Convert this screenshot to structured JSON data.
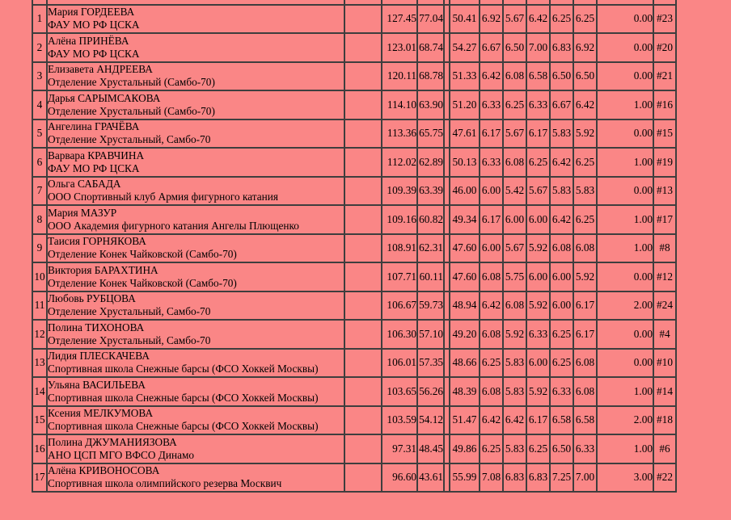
{
  "colors": {
    "page_background": "#fa8686",
    "grid_border": "#3e3e3e",
    "text": "#000000"
  },
  "table": {
    "partial_top_row_visible": true,
    "rows": [
      {
        "rank": "1",
        "name": "Мария ГОРДЕЕВА",
        "club": "ФАУ МО РФ ЦСКА",
        "total_score": "127.45",
        "score_a": "77.04",
        "score_b": "50.41",
        "components": [
          "6.92",
          "5.67",
          "6.42",
          "6.25",
          "6.25"
        ],
        "deduction": "0.00",
        "start_number": "#23"
      },
      {
        "rank": "2",
        "name": "Алёна ПРИНЁВА",
        "club": "ФАУ МО РФ ЦСКА",
        "total_score": "123.01",
        "score_a": "68.74",
        "score_b": "54.27",
        "components": [
          "6.67",
          "6.50",
          "7.00",
          "6.83",
          "6.92"
        ],
        "deduction": "0.00",
        "start_number": "#20"
      },
      {
        "rank": "3",
        "name": "Елизавета АНДРЕЕВА",
        "club": "Отделение Хрустальный (Самбо-70)",
        "total_score": "120.11",
        "score_a": "68.78",
        "score_b": "51.33",
        "components": [
          "6.42",
          "6.08",
          "6.58",
          "6.50",
          "6.50"
        ],
        "deduction": "0.00",
        "start_number": "#21"
      },
      {
        "rank": "4",
        "name": "Дарья САРЫМСАКОВА",
        "club": "Отделение Хрустальный (Самбо-70)",
        "total_score": "114.10",
        "score_a": "63.90",
        "score_b": "51.20",
        "components": [
          "6.33",
          "6.25",
          "6.33",
          "6.67",
          "6.42"
        ],
        "deduction": "1.00",
        "start_number": "#16"
      },
      {
        "rank": "5",
        "name": "Ангелина ГРАЧЁВА",
        "club": "Отделение Хрустальный, Самбо-70",
        "total_score": "113.36",
        "score_a": "65.75",
        "score_b": "47.61",
        "components": [
          "6.17",
          "5.67",
          "6.17",
          "5.83",
          "5.92"
        ],
        "deduction": "0.00",
        "start_number": "#15"
      },
      {
        "rank": "6",
        "name": "Варвара КРАВЧИНА",
        "club": "ФАУ МО РФ ЦСКА",
        "total_score": "112.02",
        "score_a": "62.89",
        "score_b": "50.13",
        "components": [
          "6.33",
          "6.08",
          "6.25",
          "6.42",
          "6.25"
        ],
        "deduction": "1.00",
        "start_number": "#19"
      },
      {
        "rank": "7",
        "name": "Ольга САБАДА",
        "club": "ООО Спортивный клуб Армия фигурного катания",
        "total_score": "109.39",
        "score_a": "63.39",
        "score_b": "46.00",
        "components": [
          "6.00",
          "5.42",
          "5.67",
          "5.83",
          "5.83"
        ],
        "deduction": "0.00",
        "start_number": "#13"
      },
      {
        "rank": "8",
        "name": "Мария МАЗУР",
        "club": "ООО Академия фигурного катания Ангелы Плющенко",
        "total_score": "109.16",
        "score_a": "60.82",
        "score_b": "49.34",
        "components": [
          "6.17",
          "6.00",
          "6.00",
          "6.42",
          "6.25"
        ],
        "deduction": "1.00",
        "start_number": "#17"
      },
      {
        "rank": "9",
        "name": "Таисия ГОРНЯКОВА",
        "club": "Отделение Конек Чайковской (Самбо-70)",
        "total_score": "108.91",
        "score_a": "62.31",
        "score_b": "47.60",
        "components": [
          "6.00",
          "5.67",
          "5.92",
          "6.08",
          "6.08"
        ],
        "deduction": "1.00",
        "start_number": "#8"
      },
      {
        "rank": "10",
        "name": "Виктория БАРАХТИНА",
        "club": "Отделение Конек Чайковской (Самбо-70)",
        "total_score": "107.71",
        "score_a": "60.11",
        "score_b": "47.60",
        "components": [
          "6.08",
          "5.75",
          "6.00",
          "6.00",
          "5.92"
        ],
        "deduction": "0.00",
        "start_number": "#12"
      },
      {
        "rank": "11",
        "name": "Любовь РУБЦОВА",
        "club": "Отделение Хрустальный, Самбо-70",
        "total_score": "106.67",
        "score_a": "59.73",
        "score_b": "48.94",
        "components": [
          "6.42",
          "6.08",
          "5.92",
          "6.00",
          "6.17"
        ],
        "deduction": "2.00",
        "start_number": "#24"
      },
      {
        "rank": "12",
        "name": "Полина ТИХОНОВА",
        "club": "Отделение Хрустальный, Самбо-70",
        "total_score": "106.30",
        "score_a": "57.10",
        "score_b": "49.20",
        "components": [
          "6.08",
          "5.92",
          "6.33",
          "6.25",
          "6.17"
        ],
        "deduction": "0.00",
        "start_number": "#4"
      },
      {
        "rank": "13",
        "name": "Лидия ПЛЕСКАЧЕВА",
        "club": "Спортивная школа Снежные барсы (ФСО Хоккей Москвы)",
        "total_score": "106.01",
        "score_a": "57.35",
        "score_b": "48.66",
        "components": [
          "6.25",
          "5.83",
          "6.00",
          "6.25",
          "6.08"
        ],
        "deduction": "0.00",
        "start_number": "#10"
      },
      {
        "rank": "14",
        "name": "Ульяна ВАСИЛЬЕВА",
        "club": "Спортивная школа Снежные барсы (ФСО Хоккей Москвы)",
        "total_score": "103.65",
        "score_a": "56.26",
        "score_b": "48.39",
        "components": [
          "6.08",
          "5.83",
          "5.92",
          "6.33",
          "6.08"
        ],
        "deduction": "1.00",
        "start_number": "#14"
      },
      {
        "rank": "15",
        "name": "Ксения МЕЛКУМОВА",
        "club": "Спортивная школа Снежные барсы (ФСО Хоккей Москвы)",
        "total_score": "103.59",
        "score_a": "54.12",
        "score_b": "51.47",
        "components": [
          "6.42",
          "6.42",
          "6.17",
          "6.58",
          "6.58"
        ],
        "deduction": "2.00",
        "start_number": "#18"
      },
      {
        "rank": "16",
        "name": "Полина ДЖУМАНИЯЗОВА",
        "club": "АНО ЦСП МГО ВФСО Динамо",
        "total_score": "97.31",
        "score_a": "48.45",
        "score_b": "49.86",
        "components": [
          "6.25",
          "5.83",
          "6.25",
          "6.50",
          "6.33"
        ],
        "deduction": "1.00",
        "start_number": "#6"
      },
      {
        "rank": "17",
        "name": "Алёна КРИВОНОСОВА",
        "club": "Спортивная школа олимпийского резерва Москвич",
        "total_score": "96.60",
        "score_a": "43.61",
        "score_b": "55.99",
        "components": [
          "7.08",
          "6.83",
          "6.83",
          "7.25",
          "7.00"
        ],
        "deduction": "3.00",
        "start_number": "#22"
      }
    ]
  }
}
